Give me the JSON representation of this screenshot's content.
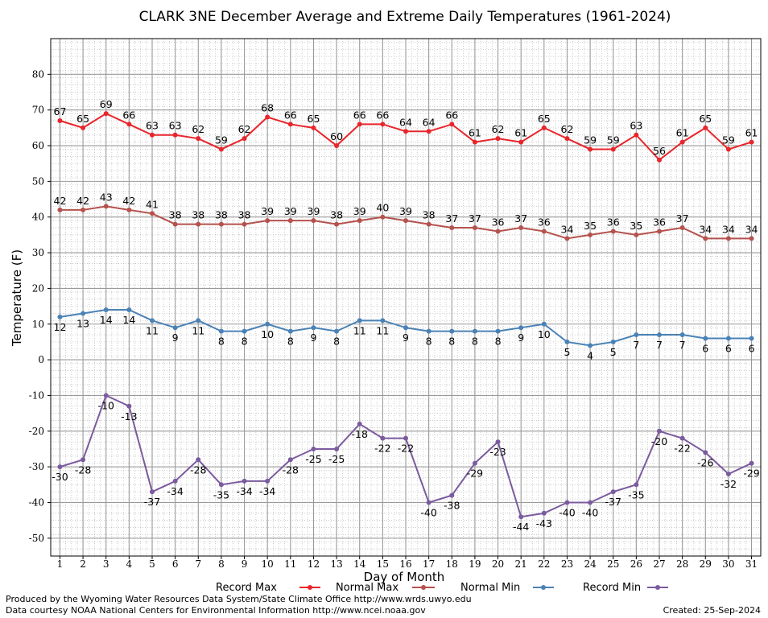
{
  "chart_data": {
    "type": "line",
    "title": "CLARK 3NE December Average and Extreme Daily Temperatures (1961-2024)",
    "xlabel": "Day of Month",
    "ylabel": "Temperature (F)",
    "x": [
      1,
      2,
      3,
      4,
      5,
      6,
      7,
      8,
      9,
      10,
      11,
      12,
      13,
      14,
      15,
      16,
      17,
      18,
      19,
      20,
      21,
      22,
      23,
      24,
      25,
      26,
      27,
      28,
      29,
      30,
      31
    ],
    "xlim": [
      0.6,
      31.4
    ],
    "ylim": [
      -55,
      90
    ],
    "yticks": [
      -50,
      -40,
      -30,
      -20,
      -10,
      0,
      10,
      20,
      30,
      40,
      50,
      60,
      70,
      80
    ],
    "grid": true,
    "legend_placement": "bottom",
    "series": [
      {
        "name": "Record Max",
        "color": "#e8262b",
        "values": [
          67,
          65,
          69,
          66,
          63,
          63,
          62,
          59,
          62,
          68,
          66,
          65,
          60,
          66,
          66,
          64,
          64,
          66,
          61,
          62,
          61,
          65,
          62,
          59,
          59,
          63,
          56,
          61,
          65,
          59,
          61
        ]
      },
      {
        "name": "Normal Max",
        "color": "#b5524d",
        "values": [
          42,
          42,
          43,
          42,
          41,
          38,
          38,
          38,
          38,
          39,
          39,
          39,
          38,
          39,
          40,
          39,
          38,
          37,
          37,
          36,
          37,
          36,
          34,
          35,
          36,
          35,
          36,
          37,
          34,
          34,
          34
        ]
      },
      {
        "name": "Normal Min",
        "color": "#4a82b6",
        "values": [
          12,
          13,
          14,
          14,
          11,
          9,
          11,
          8,
          8,
          10,
          8,
          9,
          8,
          11,
          11,
          9,
          8,
          8,
          8,
          8,
          9,
          10,
          5,
          4,
          5,
          7,
          7,
          7,
          6,
          6,
          6
        ]
      },
      {
        "name": "Record Min",
        "color": "#7b5b9e",
        "values": [
          -30,
          -28,
          -10,
          -13,
          -37,
          -34,
          -28,
          -35,
          -34,
          -34,
          -28,
          -25,
          -25,
          -18,
          -22,
          -22,
          -40,
          -38,
          -29,
          -23,
          -44,
          -43,
          -40,
          -40,
          -37,
          -35,
          -20,
          -22,
          -26,
          -32,
          -29
        ]
      }
    ]
  },
  "footer": {
    "produced_by": "Produced by the Wyoming Water Resources Data System/State Climate Office http://www.wrds.uwyo.edu",
    "courtesy": "Data courtesy NOAA National Centers for Environmental Information http://www.ncei.noaa.gov",
    "created": "Created:  25-Sep-2024"
  }
}
